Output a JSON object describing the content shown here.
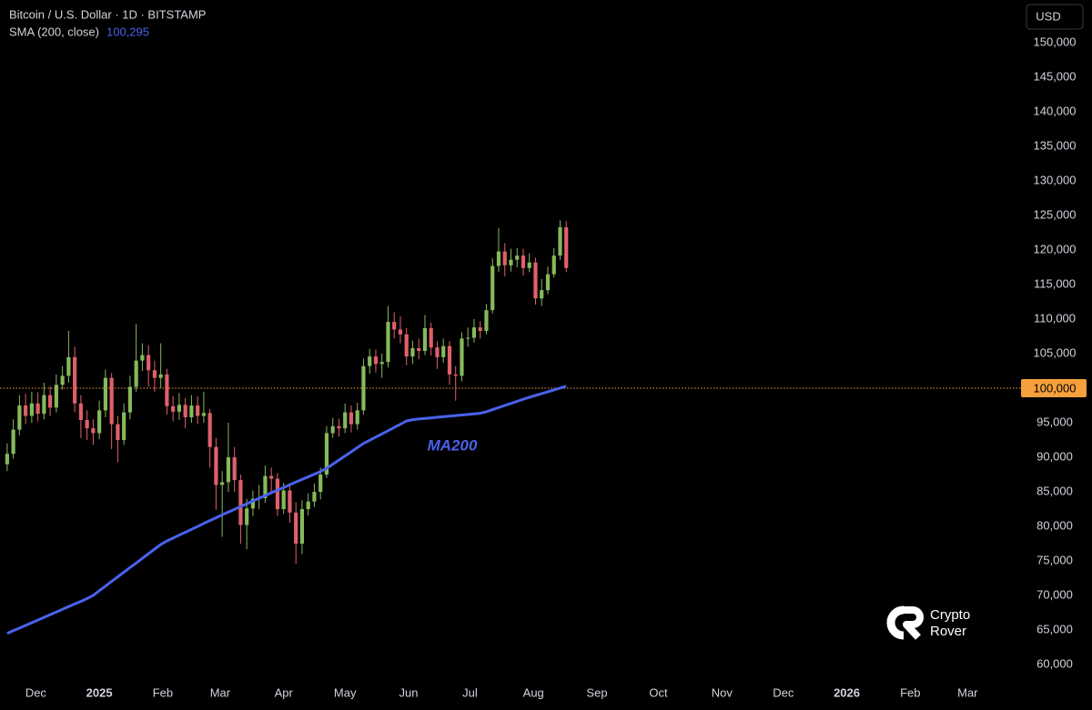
{
  "chart_data": {
    "type": "candlestick",
    "title": "Bitcoin / U.S. Dollar · 1D · BITSTAMP",
    "x": [
      0,
      3,
      6,
      9,
      12,
      15,
      18,
      21,
      24,
      27,
      30,
      33,
      36,
      39,
      42,
      45,
      48,
      51,
      54,
      57,
      60,
      63,
      66,
      69,
      72,
      75,
      78,
      81,
      84,
      87,
      90,
      93,
      96,
      99,
      102,
      105,
      108,
      111,
      114,
      117,
      120,
      123,
      126,
      129,
      132,
      135,
      138,
      141,
      144,
      147,
      150,
      153,
      156,
      159,
      162,
      165,
      168,
      171,
      174,
      177,
      180,
      183,
      186,
      189,
      192,
      195,
      198,
      201,
      204,
      207,
      210,
      213,
      216,
      219,
      222,
      225,
      228,
      231,
      234,
      237,
      240,
      243,
      246,
      249,
      252,
      255,
      258,
      261,
      264,
      267,
      270,
      273
    ],
    "open": [
      89000,
      90500,
      94000,
      97500,
      96000,
      97800,
      96300,
      99000,
      97200,
      100500,
      101800,
      104500,
      97800,
      95400,
      94200,
      93500,
      96800,
      101500,
      94800,
      92500,
      96500,
      100200,
      104000,
      104800,
      102600,
      101500,
      102000,
      97400,
      96600,
      97600,
      95800,
      97500,
      96000,
      96400,
      91500,
      86000,
      86400,
      90000,
      86700,
      80200,
      82600,
      84000,
      84100,
      87300,
      86900,
      82500,
      85200,
      82000,
      77500,
      82500,
      83600,
      85000,
      87500,
      93500,
      94500,
      94200,
      96500,
      94800,
      96800,
      103200,
      104600,
      103500,
      103800,
      109600,
      108500,
      107800,
      104600,
      105800,
      105400,
      108700,
      105900,
      104500,
      106100,
      102000,
      101800,
      107200,
      107300,
      108800,
      108300,
      111300,
      117700,
      119800,
      117800,
      118600,
      119200,
      117400,
      118200,
      113000,
      114200,
      116500,
      119200,
      123300
    ],
    "high": [
      92000,
      95500,
      99000,
      99200,
      99500,
      99400,
      100800,
      100300,
      102000,
      103200,
      108300,
      106000,
      99000,
      96800,
      95500,
      98200,
      102700,
      102200,
      96000,
      97800,
      101800,
      109300,
      106500,
      106200,
      104000,
      106500,
      102800,
      98900,
      99300,
      98600,
      99000,
      98800,
      99500,
      97000,
      92800,
      88000,
      95000,
      91500,
      87500,
      84000,
      85200,
      86000,
      88800,
      88500,
      87700,
      86300,
      86000,
      83500,
      83800,
      84800,
      86200,
      88500,
      94500,
      95700,
      95600,
      97800,
      97500,
      97900,
      104300,
      105700,
      105600,
      105000,
      111900,
      111000,
      110400,
      108700,
      106900,
      107200,
      110600,
      109500,
      106800,
      107200,
      106800,
      103200,
      108100,
      108800,
      110000,
      109700,
      112200,
      118800,
      123200,
      121000,
      120200,
      120300,
      120200,
      119500,
      118900,
      115800,
      117600,
      120300,
      124300,
      124200
    ],
    "low": [
      88000,
      89800,
      93200,
      94800,
      95000,
      95200,
      95500,
      96000,
      96500,
      99800,
      100800,
      96500,
      92800,
      92500,
      91800,
      92600,
      95800,
      91200,
      89300,
      91800,
      95500,
      99500,
      102500,
      100200,
      99500,
      100000,
      96200,
      95200,
      95400,
      94200,
      95000,
      94800,
      95000,
      88500,
      82400,
      78500,
      85000,
      85000,
      77500,
      76700,
      81500,
      82500,
      83400,
      85000,
      81500,
      81800,
      80500,
      74600,
      76000,
      81600,
      82800,
      83900,
      87000,
      92800,
      93000,
      93500,
      93600,
      94000,
      96200,
      102100,
      102300,
      101500,
      103000,
      107200,
      106500,
      103300,
      103500,
      104200,
      104800,
      104700,
      102800,
      103700,
      100500,
      98200,
      101000,
      106000,
      106600,
      107200,
      107800,
      110800,
      116800,
      116200,
      116900,
      117500,
      116300,
      116800,
      112100,
      111900,
      113600,
      116000,
      118600,
      116800
    ],
    "close": [
      90500,
      94000,
      97500,
      96000,
      97800,
      96300,
      99000,
      97200,
      100500,
      101800,
      104500,
      97800,
      95400,
      94200,
      93500,
      96800,
      101500,
      94800,
      92500,
      96500,
      100200,
      104000,
      104800,
      102600,
      101500,
      102000,
      97400,
      96600,
      97600,
      95800,
      97500,
      96000,
      96400,
      91500,
      86000,
      86400,
      90000,
      86700,
      80200,
      82600,
      84000,
      84100,
      87300,
      86900,
      82500,
      85200,
      82000,
      77500,
      82500,
      83600,
      85000,
      87500,
      93500,
      94500,
      94200,
      96500,
      94800,
      96800,
      103200,
      104600,
      103500,
      103800,
      109600,
      108500,
      107800,
      104600,
      105800,
      105400,
      108700,
      105900,
      104500,
      106100,
      102000,
      101800,
      107200,
      107300,
      108800,
      108300,
      111300,
      117700,
      119800,
      117800,
      118600,
      119200,
      117400,
      118200,
      113000,
      114200,
      116500,
      119200,
      123300,
      117400
    ],
    "up_color": "#86b95b",
    "down_color": "#e0606a",
    "indicator": {
      "name": "SMA (200, close)",
      "value": 100295,
      "value_label": "100,295",
      "color": "#4a62ec",
      "values": [
        64500,
        64890,
        65280,
        65660,
        66050,
        66440,
        66830,
        67220,
        67600,
        67990,
        68380,
        68770,
        69150,
        69540,
        70020,
        70690,
        71360,
        72030,
        72700,
        73370,
        74040,
        74700,
        75370,
        76040,
        76710,
        77380,
        77880,
        78300,
        78730,
        79150,
        79570,
        79990,
        80420,
        80840,
        81260,
        81670,
        82070,
        82470,
        82870,
        83270,
        83670,
        84070,
        84470,
        84870,
        85260,
        85640,
        86020,
        86410,
        86790,
        87180,
        87560,
        87940,
        88400,
        89000,
        89600,
        90200,
        90800,
        91400,
        92000,
        92460,
        92930,
        93390,
        93850,
        94320,
        94780,
        95250,
        95460,
        95540,
        95620,
        95710,
        95790,
        95870,
        95960,
        96040,
        96120,
        96210,
        96290,
        96370,
        96600,
        96900,
        97200,
        97500,
        97800,
        98100,
        98400,
        98690,
        98960,
        99220,
        99490,
        99760,
        100030,
        100295
      ]
    },
    "annotation": "MA200",
    "price_line": {
      "value": 100000,
      "label": "100,000",
      "color": "#f5a03c"
    },
    "currency": "USD",
    "grid": false,
    "xlim": [
      -3.5,
      493.3
    ],
    "ylim": [
      57500,
      156200
    ],
    "xticks": [
      {
        "value": 14,
        "label": "Dec"
      },
      {
        "value": 45,
        "label": "2025"
      },
      {
        "value": 76,
        "label": "Feb"
      },
      {
        "value": 104,
        "label": "Mar"
      },
      {
        "value": 135,
        "label": "Apr"
      },
      {
        "value": 165,
        "label": "May"
      },
      {
        "value": 196,
        "label": "Jun"
      },
      {
        "value": 226,
        "label": "Jul"
      },
      {
        "value": 257,
        "label": "Aug"
      },
      {
        "value": 288,
        "label": "Sep"
      },
      {
        "value": 318,
        "label": "Oct"
      },
      {
        "value": 349,
        "label": "Nov"
      },
      {
        "value": 379,
        "label": "Dec"
      },
      {
        "value": 410,
        "label": "2026"
      },
      {
        "value": 441,
        "label": "Feb"
      },
      {
        "value": 469,
        "label": "Mar"
      }
    ],
    "yticks": [
      {
        "value": 60000,
        "label": "60,000"
      },
      {
        "value": 65000,
        "label": "65,000"
      },
      {
        "value": 70000,
        "label": "70,000"
      },
      {
        "value": 75000,
        "label": "75,000"
      },
      {
        "value": 80000,
        "label": "80,000"
      },
      {
        "value": 85000,
        "label": "85,000"
      },
      {
        "value": 90000,
        "label": "90,000"
      },
      {
        "value": 95000,
        "label": "95,000"
      },
      {
        "value": 100000,
        "label": "100,000"
      },
      {
        "value": 105000,
        "label": "105,000"
      },
      {
        "value": 110000,
        "label": "110,000"
      },
      {
        "value": 115000,
        "label": "115,000"
      },
      {
        "value": 120000,
        "label": "120,000"
      },
      {
        "value": 125000,
        "label": "125,000"
      },
      {
        "value": 130000,
        "label": "130,000"
      },
      {
        "value": 135000,
        "label": "135,000"
      },
      {
        "value": 140000,
        "label": "140,000"
      },
      {
        "value": 145000,
        "label": "145,000"
      },
      {
        "value": 150000,
        "label": "150,000"
      }
    ]
  },
  "logo": {
    "lines": [
      "Crypto",
      "Rover"
    ]
  }
}
